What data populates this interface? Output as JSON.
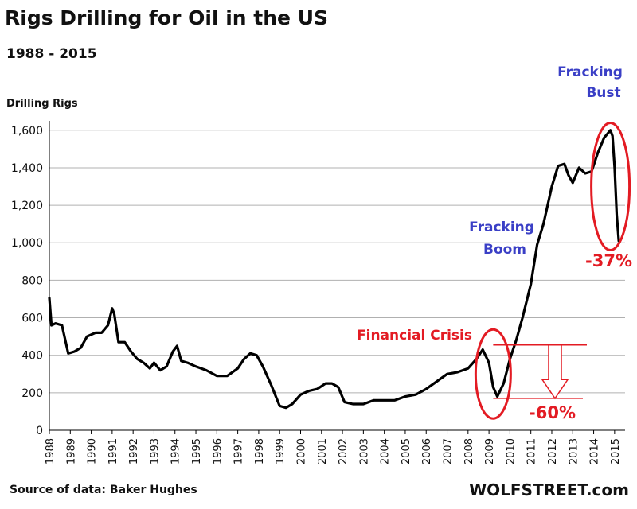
{
  "header": {
    "title": "Rigs Drilling for Oil in the US",
    "subtitle": "1988 - 2015"
  },
  "footer": {
    "source": "Source of data: Baker Hughes",
    "brand": "WOLFSTREET.com"
  },
  "annotations": {
    "fracking_bust": [
      "Fracking",
      "Bust"
    ],
    "fracking_boom": [
      "Fracking",
      "Boom"
    ],
    "financial_crisis": "Financial Crisis",
    "drop_37": "-37%",
    "drop_60": "-60%"
  },
  "colors": {
    "line": "#000000",
    "highlight": "#e31b23",
    "annotation_blue": "#3a3fc6",
    "grid": "#b0b0b0"
  },
  "chart_data": {
    "type": "line",
    "title": "Rigs Drilling for Oil in the US",
    "subtitle": "1988 - 2015",
    "ylabel": "Drilling Rigs",
    "xlabel": "",
    "ylim": [
      0,
      1650
    ],
    "xlim": [
      1988,
      2015.5
    ],
    "y_ticks": [
      0,
      200,
      400,
      600,
      800,
      1000,
      1200,
      1400,
      1600
    ],
    "y_tick_labels": [
      "0",
      "200",
      "400",
      "600",
      "800",
      "1,000",
      "1,200",
      "1,400",
      "1,600"
    ],
    "x_ticks": [
      1988,
      1989,
      1990,
      1991,
      1992,
      1993,
      1994,
      1995,
      1996,
      1997,
      1998,
      1999,
      2000,
      2001,
      2002,
      2003,
      2004,
      2005,
      2006,
      2007,
      2008,
      2009,
      2010,
      2011,
      2012,
      2013,
      2014,
      2015
    ],
    "grid": "horizontal",
    "series": [
      {
        "x": [
          1988.0,
          1988.1,
          1988.3,
          1988.6,
          1988.9,
          1989.2,
          1989.5,
          1989.8,
          1990.2,
          1990.5,
          1990.8,
          1991.0,
          1991.1,
          1991.3,
          1991.6,
          1991.9,
          1992.2,
          1992.5,
          1992.8,
          1993.0,
          1993.3,
          1993.6,
          1993.9,
          1994.1,
          1994.3,
          1994.6,
          1995.0,
          1995.5,
          1996.0,
          1996.5,
          1997.0,
          1997.3,
          1997.6,
          1997.9,
          1998.2,
          1998.6,
          1999.0,
          1999.3,
          1999.6,
          2000.0,
          2000.4,
          2000.8,
          2001.2,
          2001.5,
          2001.8,
          2002.1,
          2002.5,
          2003.0,
          2003.5,
          2004.0,
          2004.5,
          2005.0,
          2005.5,
          2006.0,
          2006.5,
          2007.0,
          2007.5,
          2008.0,
          2008.4,
          2008.7,
          2009.0,
          2009.2,
          2009.4,
          2009.7,
          2010.0,
          2010.3,
          2010.6,
          2011.0,
          2011.3,
          2011.6,
          2012.0,
          2012.3,
          2012.6,
          2012.8,
          2013.0,
          2013.3,
          2013.6,
          2013.9,
          2014.2,
          2014.5,
          2014.8,
          2014.9,
          2015.0,
          2015.1,
          2015.2
        ],
        "values": [
          705,
          560,
          570,
          560,
          410,
          420,
          440,
          500,
          520,
          520,
          560,
          650,
          620,
          470,
          470,
          420,
          380,
          360,
          330,
          360,
          320,
          340,
          420,
          450,
          370,
          360,
          340,
          320,
          290,
          290,
          330,
          380,
          410,
          400,
          340,
          240,
          130,
          120,
          140,
          190,
          210,
          220,
          250,
          250,
          230,
          150,
          140,
          140,
          160,
          160,
          160,
          180,
          190,
          220,
          260,
          300,
          310,
          330,
          380,
          430,
          360,
          230,
          180,
          250,
          380,
          480,
          600,
          780,
          990,
          1100,
          1300,
          1410,
          1420,
          1360,
          1320,
          1400,
          1370,
          1380,
          1480,
          1560,
          1600,
          1570,
          1400,
          1150,
          1010
        ]
      }
    ],
    "annotations": [
      {
        "text": "Fracking Bust",
        "x": 2014.8,
        "y": 1600
      },
      {
        "text": "Fracking Boom",
        "x": 2011.5,
        "y": 1000
      },
      {
        "text": "Financial Crisis",
        "x": 2009.0,
        "y": 450
      },
      {
        "text": "-37%",
        "x": 2015.1,
        "y": 1010
      },
      {
        "text": "-60%",
        "x": 2009.4,
        "y": 180
      }
    ]
  }
}
